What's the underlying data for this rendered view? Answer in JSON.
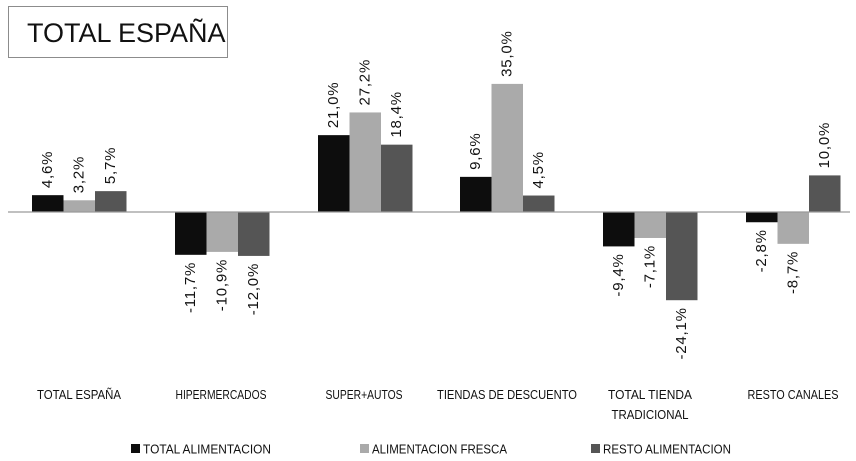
{
  "chart_data": {
    "type": "bar",
    "title": "TOTAL ESPAÑA",
    "categories": [
      [
        "TOTAL ESPAÑA"
      ],
      [
        "HIPERMERCADOS"
      ],
      [
        "SUPER+AUTOS"
      ],
      [
        "TIENDAS DE DESCUENTO"
      ],
      [
        "TOTAL TIENDA",
        "TRADICIONAL"
      ],
      [
        "RESTO CANALES"
      ]
    ],
    "series": [
      {
        "name": "TOTAL ALIMENTACION",
        "color": "#0d0d0d",
        "values": [
          4.6,
          -11.7,
          21.0,
          9.6,
          -9.4,
          -2.8
        ],
        "labels": [
          "4,6%",
          "-11,7%",
          "21,0%",
          "9,6%",
          "-9,4%",
          "-2,8%"
        ]
      },
      {
        "name": "ALIMENTACION FRESCA",
        "color": "#aaaaaa",
        "values": [
          3.2,
          -10.9,
          27.2,
          35.0,
          -7.1,
          -8.7
        ],
        "labels": [
          "3,2%",
          "-10,9%",
          "27,2%",
          "35,0%",
          "-7,1%",
          "-8,7%"
        ]
      },
      {
        "name": "RESTO ALIMENTACION",
        "color": "#555555",
        "values": [
          5.7,
          -12.0,
          18.4,
          4.5,
          -24.1,
          10.0
        ],
        "labels": [
          "5,7%",
          "-12,0%",
          "18,4%",
          "4,5%",
          "-24,1%",
          "10,0%"
        ]
      }
    ],
    "xlabel": "",
    "ylabel": "",
    "ylim": [
      -24.1,
      35.0
    ],
    "grid": false,
    "legend": "bottom"
  }
}
